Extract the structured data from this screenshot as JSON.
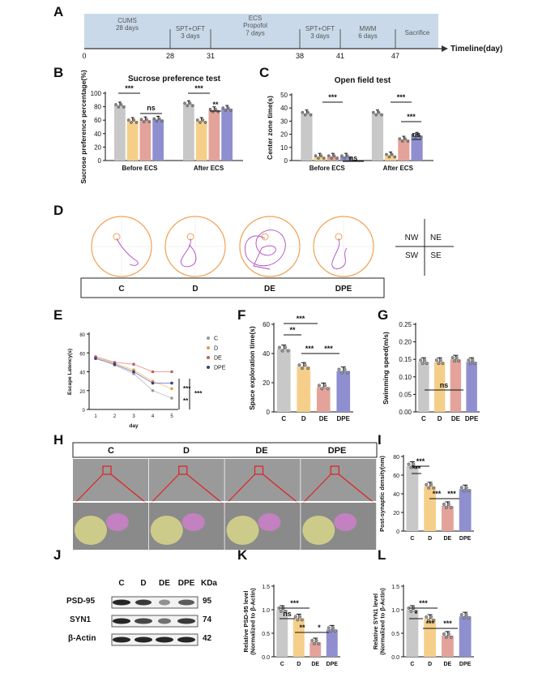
{
  "panel_letters": [
    "A",
    "B",
    "C",
    "D",
    "E",
    "F",
    "G",
    "H",
    "I",
    "J",
    "K",
    "L"
  ],
  "colors": {
    "C": "#c8c8c8",
    "D": "#f5cf8a",
    "DE": "#e3a39a",
    "DPE": "#8f8fd0",
    "timeline": "#c9d9ea",
    "path": "#b04bc0",
    "arena": "#f0a050",
    "em_bg": "#8a8a8a",
    "em_yellow": "#d8d68a",
    "em_pink": "#c980c6"
  },
  "timeline": {
    "segments": [
      "CUMS\n28 days",
      "SPT+OFT\n3 days",
      "ECS\nPropofol\n7 days",
      "SPT+OFT\n3 days",
      "MWM\n6 days",
      "Sacrifice"
    ],
    "ticks": [
      "0",
      "28",
      "31",
      "38",
      "41",
      "47"
    ],
    "label": "Timeline(day)"
  },
  "maze": {
    "groups": [
      "C",
      "D",
      "DE",
      "DPE"
    ],
    "quadrants": [
      "NW",
      "NE",
      "SW",
      "SE"
    ]
  },
  "em": {
    "groups": [
      "C",
      "D",
      "DE",
      "DPE"
    ]
  },
  "western": {
    "header": [
      "C",
      "D",
      "DE",
      "DPE",
      "KDa"
    ],
    "proteins": [
      "PSD-95",
      "SYN1",
      "β-Actin"
    ],
    "kda": [
      "95",
      "74",
      "42"
    ]
  },
  "chart_data": [
    {
      "panel": "B",
      "type": "bar",
      "title": "Sucrose preference test",
      "ylabel": "Sucrose preference percentage(%)",
      "ylim": [
        0,
        100
      ],
      "yticks": [
        "0",
        "20",
        "40",
        "60",
        "80",
        "100"
      ],
      "categories": [
        "Before ECS",
        "After ECS"
      ],
      "series": [
        {
          "name": "C",
          "values": [
            82,
            84
          ]
        },
        {
          "name": "D",
          "values": [
            59,
            59
          ]
        },
        {
          "name": "DE",
          "values": [
            60,
            75
          ]
        },
        {
          "name": "DPE",
          "values": [
            61,
            77
          ]
        }
      ],
      "annotations": [
        "***",
        "ns",
        "***",
        "**"
      ]
    },
    {
      "panel": "C",
      "type": "bar",
      "title": "Open field test",
      "ylabel": "Center zone time(s)",
      "ylim": [
        0,
        50
      ],
      "yticks": [
        "0",
        "10",
        "20",
        "30",
        "40",
        "50"
      ],
      "categories": [
        "Before ECS",
        "After ECS"
      ],
      "series": [
        {
          "name": "C",
          "values": [
            36,
            36
          ]
        },
        {
          "name": "D",
          "values": [
            3,
            4
          ]
        },
        {
          "name": "DE",
          "values": [
            3,
            16
          ]
        },
        {
          "name": "DPE",
          "values": [
            3,
            19
          ]
        }
      ],
      "annotations": [
        "***",
        "ns",
        "***",
        "***",
        "ns"
      ]
    },
    {
      "panel": "E",
      "type": "line",
      "xlabel": "day",
      "ylabel": "Escape Latency(s)",
      "ylim": [
        0,
        80
      ],
      "yticks": [
        "0",
        "20",
        "40",
        "60",
        "80"
      ],
      "x": [
        "1",
        "2",
        "3",
        "4",
        "5"
      ],
      "series": [
        {
          "name": "C",
          "values": [
            55,
            47,
            38,
            20,
            12
          ]
        },
        {
          "name": "D",
          "values": [
            55,
            49,
            42,
            30,
            22
          ]
        },
        {
          "name": "DE",
          "values": [
            56,
            50,
            48,
            40,
            40
          ]
        },
        {
          "name": "DPE",
          "values": [
            54,
            48,
            40,
            28,
            28
          ]
        }
      ],
      "annotations": [
        "***",
        "**",
        "***"
      ]
    },
    {
      "panel": "F",
      "type": "bar",
      "ylabel": "Space exploration time(s)",
      "ylim": [
        0,
        60
      ],
      "yticks": [
        "0",
        "20",
        "40",
        "60"
      ],
      "categories": [
        "C",
        "D",
        "DE",
        "DPE"
      ],
      "values": [
        43,
        31,
        17,
        28
      ],
      "annotations": [
        "***",
        "**",
        "***",
        "***"
      ]
    },
    {
      "panel": "G",
      "type": "bar",
      "ylabel": "Swimming speed(m/s)",
      "ylim": [
        0,
        0.25
      ],
      "yticks": [
        "0.00",
        "0.05",
        "0.10",
        "0.15",
        "0.20",
        "0.25"
      ],
      "categories": [
        "C",
        "D",
        "DE",
        "DPE"
      ],
      "values": [
        0.143,
        0.143,
        0.15,
        0.143
      ],
      "annotations": [
        "ns"
      ]
    },
    {
      "panel": "I",
      "type": "bar",
      "ylabel": "Post-synaptic density(nm)",
      "ylim": [
        0,
        80
      ],
      "yticks": [
        "0",
        "20",
        "40",
        "60",
        "80"
      ],
      "categories": [
        "C",
        "D",
        "DE",
        "DPE"
      ],
      "values": [
        70,
        48,
        27,
        45
      ],
      "annotations": [
        "***",
        "***",
        "***",
        "***"
      ]
    },
    {
      "panel": "K",
      "type": "bar",
      "ylabel": "Relative PSD-95 level\n(Normalized to β-Actin)",
      "ylim": [
        0,
        1.5
      ],
      "yticks": [
        "0.0",
        "0.5",
        "1.0",
        "1.5"
      ],
      "categories": [
        "C",
        "D",
        "DE",
        "DPE"
      ],
      "values": [
        1.0,
        0.82,
        0.31,
        0.58
      ],
      "annotations": [
        "***",
        "ns",
        "**",
        "*"
      ]
    },
    {
      "panel": "L",
      "type": "bar",
      "ylabel": "Relative SYN1 level\n(Normalized to β-Actin)",
      "ylim": [
        0,
        1.5
      ],
      "yticks": [
        "0.0",
        "0.5",
        "1.0",
        "1.5"
      ],
      "categories": [
        "C",
        "D",
        "DE",
        "DPE"
      ],
      "values": [
        1.0,
        0.81,
        0.45,
        0.86
      ],
      "annotations": [
        "***",
        "*",
        "***",
        "***"
      ]
    }
  ]
}
